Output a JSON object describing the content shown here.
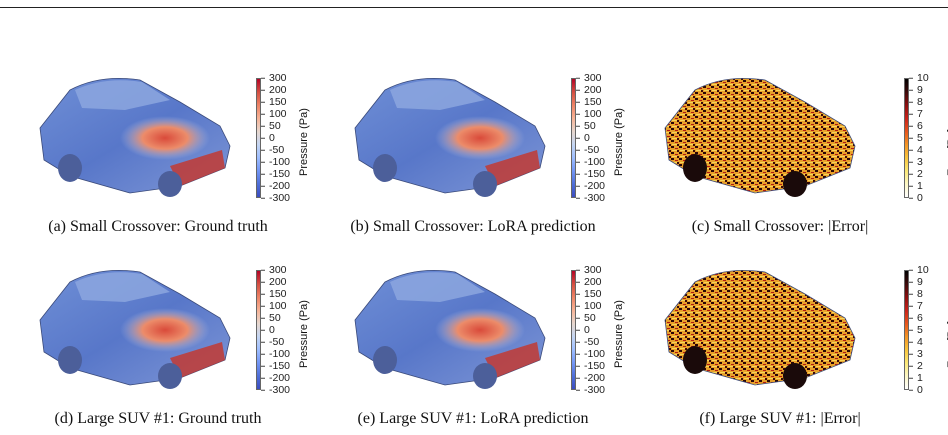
{
  "panels": [
    {
      "caption": "(a) Small Crossover: Ground truth",
      "kind": "pressure"
    },
    {
      "caption": "(b) Small Crossover: LoRA prediction",
      "kind": "pressure"
    },
    {
      "caption": "(c) Small Crossover: |Error|",
      "kind": "error"
    },
    {
      "caption": "(d) Large SUV #1: Ground truth",
      "kind": "pressure"
    },
    {
      "caption": "(e) Large SUV #1: LoRA prediction",
      "kind": "pressure"
    },
    {
      "caption": "(f) Large SUV #1: |Error|",
      "kind": "error"
    }
  ],
  "pressure_colorbar": {
    "title": "Pressure (Pa)",
    "ticks": [
      "300",
      "200",
      "150",
      "100",
      "50",
      "0",
      "-50",
      "-100",
      "-150",
      "-200",
      "-300"
    ],
    "colors": [
      "#b40426",
      "#d44e41",
      "#ed8366",
      "#f7b396",
      "#e7d7ce",
      "#c5d6f2",
      "#9ebeff",
      "#7396f5",
      "#4f6fd8",
      "#3b4cc0"
    ]
  },
  "error_colorbar": {
    "title": "Error [Pa]",
    "ticks": [
      "10",
      "9",
      "8",
      "7",
      "6",
      "5",
      "4",
      "3",
      "2",
      "1",
      "0"
    ],
    "colors": [
      "#000000",
      "#3d0a0a",
      "#8a0e0e",
      "#c8221a",
      "#e6551c",
      "#f39425",
      "#f8c43c",
      "#fbe876",
      "#fdf7c4",
      "#ffffff"
    ]
  }
}
